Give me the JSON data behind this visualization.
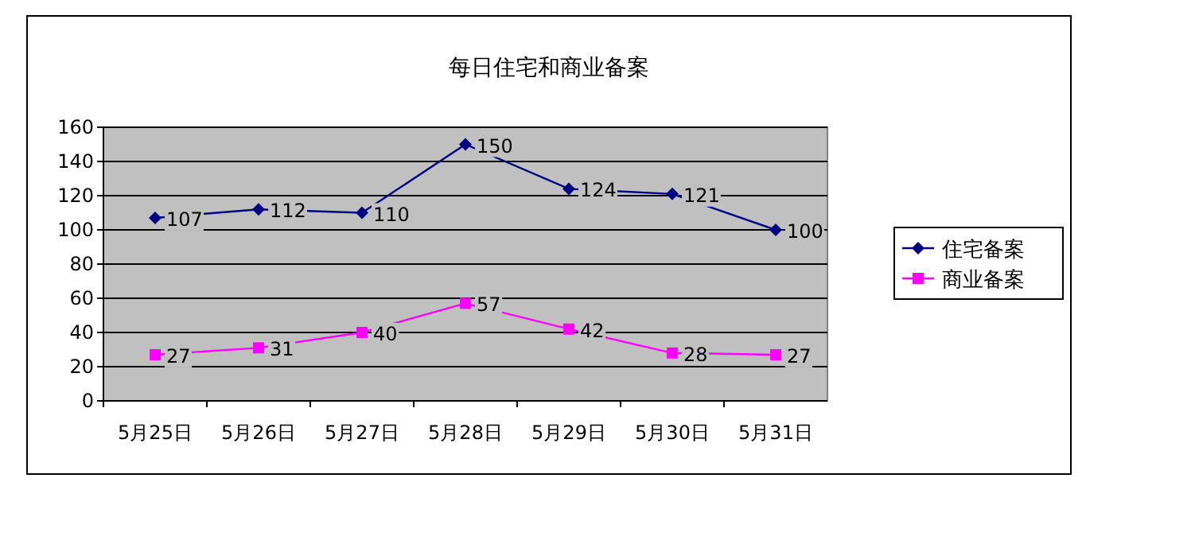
{
  "chart_data": {
    "type": "line",
    "title": "每日住宅和商业备案",
    "categories": [
      "5月25日",
      "5月26日",
      "5月27日",
      "5月28日",
      "5月29日",
      "5月30日",
      "5月31日"
    ],
    "series": [
      {
        "name": "住宅备案",
        "color": "#000080",
        "marker": "diamond",
        "values": [
          107,
          112,
          110,
          150,
          124,
          121,
          100
        ]
      },
      {
        "name": "商业备案",
        "color": "#ff00ff",
        "marker": "square",
        "values": [
          27,
          31,
          40,
          57,
          42,
          28,
          27
        ]
      }
    ],
    "ylim": [
      0,
      160
    ],
    "yticks": [
      0,
      20,
      40,
      60,
      80,
      100,
      120,
      140,
      160
    ],
    "grid": "y",
    "legend": "right",
    "data_labels": true,
    "line_style": "solid"
  }
}
